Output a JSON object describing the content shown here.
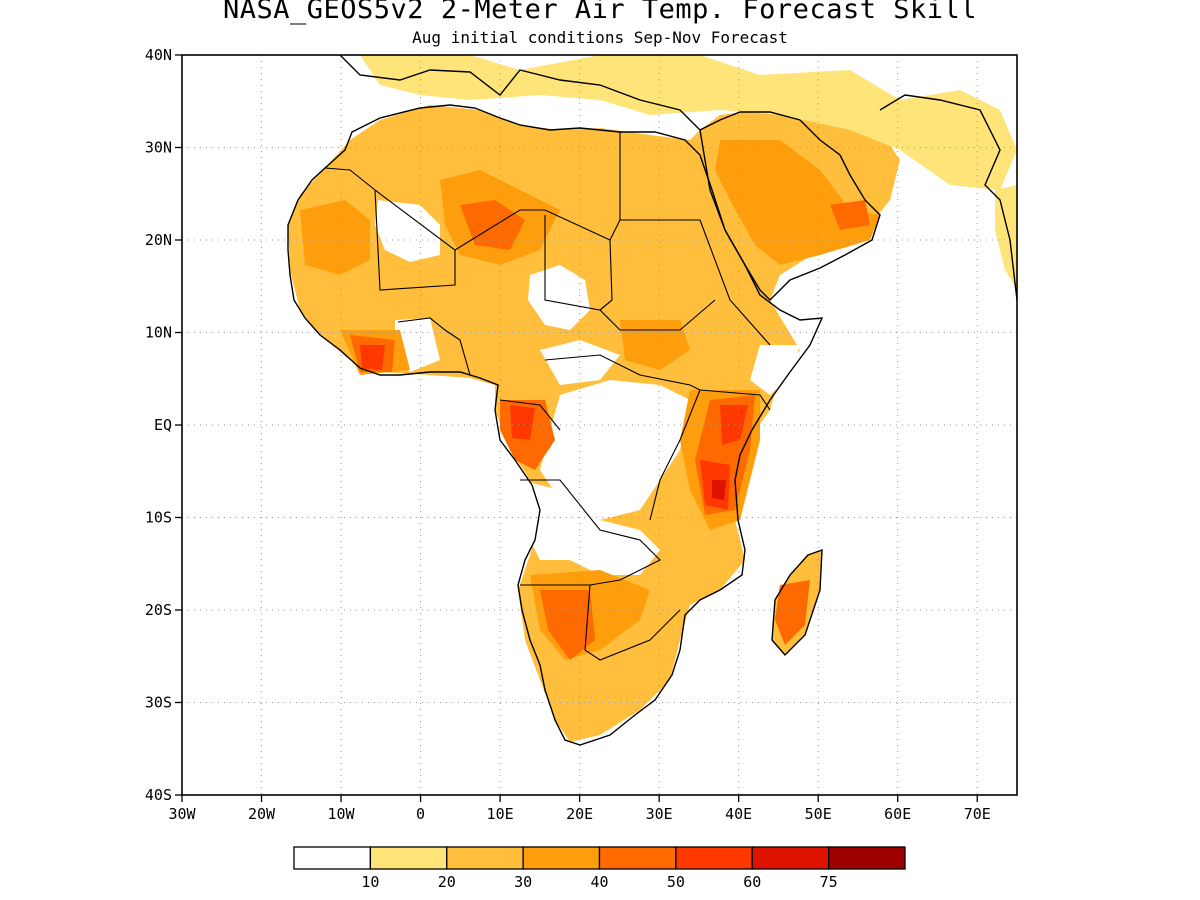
{
  "title": "NASA_GEOS5v2 2-Meter Air Temp. Forecast Skill",
  "subtitle": "Aug initial conditions  Sep-Nov Forecast",
  "axes": {
    "lat_labels": [
      "40N",
      "30N",
      "20N",
      "10N",
      "EQ",
      "10S",
      "20S",
      "30S",
      "40S"
    ],
    "lat_values": [
      40,
      30,
      20,
      10,
      0,
      -10,
      -20,
      -30,
      -40
    ],
    "lon_labels": [
      "30W",
      "20W",
      "10W",
      "0",
      "10E",
      "20E",
      "30E",
      "40E",
      "50E",
      "60E",
      "70E"
    ],
    "lon_values": [
      -30,
      -20,
      -10,
      0,
      10,
      20,
      30,
      40,
      50,
      60,
      70
    ],
    "lon_range": [
      -30,
      75
    ],
    "lat_range": [
      -40,
      40
    ],
    "grid": true
  },
  "colorbar": {
    "colors": [
      "#ffffff",
      "#ffe479",
      "#ffbe3c",
      "#ff9e0c",
      "#ff6a00",
      "#ff3800",
      "#dd1300",
      "#9e0000"
    ],
    "labels": [
      "10",
      "20",
      "30",
      "40",
      "50",
      "60",
      "75"
    ]
  }
}
